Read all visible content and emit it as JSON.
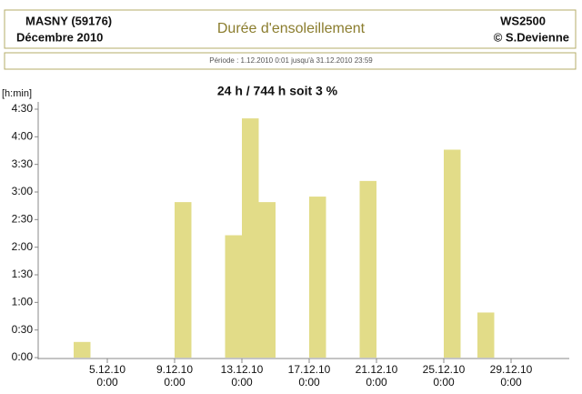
{
  "chart_data": {
    "type": "bar",
    "station": "MASNY (59176)",
    "month": "Décembre  2010",
    "title": "Durée d'ensoleillement",
    "device": "WS2500",
    "copyright": "© S.Devienne",
    "period": "Période :   1.12.2010    0:01    jusqu'à  31.12.2010    23:59",
    "summary": "24 h / 744 h  soit  3 %",
    "y_label": "[h:min]",
    "categories": [
      null,
      null,
      null,
      null,
      [
        "5.12.10",
        "0:00"
      ],
      null,
      null,
      null,
      [
        "9.12.10",
        "0:00"
      ],
      null,
      null,
      null,
      [
        "13.12.10",
        "0:00"
      ],
      null,
      null,
      null,
      [
        "17.12.10",
        "0:00"
      ],
      null,
      null,
      null,
      [
        "21.12.10",
        "0:00"
      ],
      null,
      null,
      null,
      [
        "25.12.10",
        "0:00"
      ],
      null,
      null,
      null,
      [
        "29.12.10",
        "0:00"
      ],
      null,
      null
    ],
    "values": [
      0,
      0,
      17,
      0,
      0,
      0,
      0,
      0,
      169,
      0,
      0,
      133,
      260,
      169,
      0,
      0,
      175,
      0,
      0,
      192,
      0,
      0,
      0,
      0,
      226,
      0,
      49,
      0,
      0,
      0,
      0
    ],
    "color": "#e2dc88",
    "ylim": [
      0,
      270
    ],
    "yticks": [
      {
        "value": 0,
        "label": "0:00"
      },
      {
        "value": 30,
        "label": "0:30"
      },
      {
        "value": 60,
        "label": "1:00"
      },
      {
        "value": 90,
        "label": "1:30"
      },
      {
        "value": 120,
        "label": "2:00"
      },
      {
        "value": 150,
        "label": "2:30"
      },
      {
        "value": 180,
        "label": "3:00"
      },
      {
        "value": 210,
        "label": "3:30"
      },
      {
        "value": 240,
        "label": "4:00"
      },
      {
        "value": 270,
        "label": "4:30"
      }
    ],
    "grid": false
  }
}
